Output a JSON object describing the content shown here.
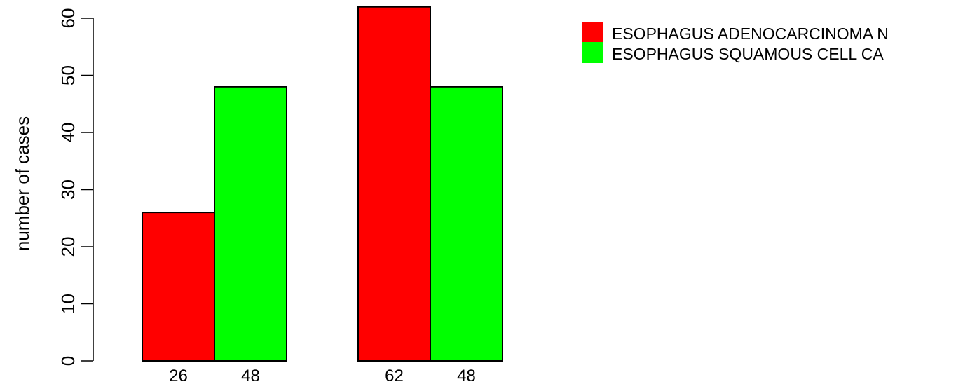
{
  "chart_data": {
    "type": "bar",
    "ylabel": "number of cases",
    "ylim": [
      0,
      62
    ],
    "yticks": [
      0,
      10,
      20,
      30,
      40,
      50,
      60
    ],
    "groups": [
      {
        "bars": [
          {
            "series": 0,
            "value": 26,
            "label": "26"
          },
          {
            "series": 1,
            "value": 48,
            "label": "48"
          }
        ]
      },
      {
        "bars": [
          {
            "series": 0,
            "value": 62,
            "label": "62"
          },
          {
            "series": 1,
            "value": 48,
            "label": "48"
          }
        ]
      }
    ],
    "series": [
      {
        "name": "ESOPHAGUS ADENOCARCINOMA  N",
        "color": "#ff0000"
      },
      {
        "name": "ESOPHAGUS SQUAMOUS CELL CA",
        "color": "#00ff00"
      }
    ],
    "legend": "top-right",
    "grid": false
  }
}
